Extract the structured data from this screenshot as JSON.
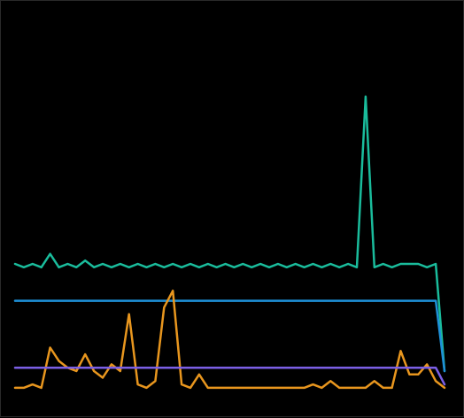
{
  "chart_data": {
    "type": "line",
    "title": "",
    "xlabel": "",
    "ylabel": "",
    "grid": false,
    "legend": "none",
    "x": [
      1,
      2,
      3,
      4,
      5,
      6,
      7,
      8,
      9,
      10,
      11,
      12,
      13,
      14,
      15,
      16,
      17,
      18,
      19,
      20,
      21,
      22,
      23,
      24,
      25,
      26,
      27,
      28,
      29,
      30,
      31,
      32,
      33,
      34,
      35,
      36,
      37,
      38,
      39,
      40,
      41,
      42,
      43,
      44,
      45,
      46,
      47,
      48,
      49,
      50
    ],
    "xlim": [
      1,
      50
    ],
    "ylim": [
      0,
      100
    ],
    "series": [
      {
        "color": "#1ABC9C",
        "values": [
          41,
          40,
          41,
          40,
          44,
          40,
          41,
          40,
          42,
          40,
          41,
          40,
          41,
          40,
          41,
          40,
          41,
          40,
          41,
          40,
          41,
          40,
          41,
          40,
          41,
          40,
          41,
          40,
          41,
          40,
          41,
          40,
          41,
          40,
          41,
          40,
          41,
          40,
          41,
          40,
          91,
          40,
          41,
          40,
          41,
          41,
          41,
          40,
          41,
          9
        ]
      },
      {
        "color": "#1E90D8",
        "values": [
          30,
          30,
          30,
          30,
          30,
          30,
          30,
          30,
          30,
          30,
          30,
          30,
          30,
          30,
          30,
          30,
          30,
          30,
          30,
          30,
          30,
          30,
          30,
          30,
          30,
          30,
          30,
          30,
          30,
          30,
          30,
          30,
          30,
          30,
          30,
          30,
          30,
          30,
          30,
          30,
          30,
          30,
          30,
          30,
          30,
          30,
          30,
          30,
          30,
          9
        ]
      },
      {
        "color": "#E8961E",
        "values": [
          4,
          4,
          5,
          4,
          16,
          12,
          10,
          9,
          14,
          9,
          7,
          11,
          9,
          26,
          5,
          4,
          6,
          28,
          33,
          5,
          4,
          8,
          4,
          4,
          4,
          4,
          4,
          4,
          4,
          4,
          4,
          4,
          4,
          4,
          5,
          4,
          6,
          4,
          4,
          4,
          4,
          6,
          4,
          4,
          15,
          8,
          8,
          11,
          6,
          4
        ]
      },
      {
        "color": "#7B5FE6",
        "values": [
          10,
          10,
          10,
          10,
          10,
          10,
          10,
          10,
          10,
          10,
          10,
          10,
          10,
          10,
          10,
          10,
          10,
          10,
          10,
          10,
          10,
          10,
          10,
          10,
          10,
          10,
          10,
          10,
          10,
          10,
          10,
          10,
          10,
          10,
          10,
          10,
          10,
          10,
          10,
          10,
          10,
          10,
          10,
          10,
          10,
          10,
          10,
          10,
          10,
          5
        ]
      }
    ]
  }
}
